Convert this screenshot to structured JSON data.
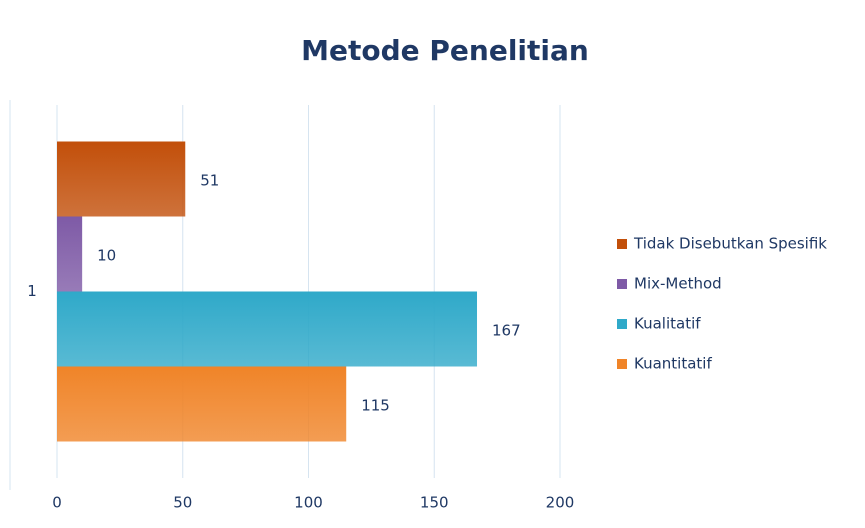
{
  "chart_data": {
    "type": "bar",
    "orientation": "horizontal",
    "title": "Metode Penelitian",
    "categories": [
      "1"
    ],
    "series": [
      {
        "name": "Tidak Disebutkan Spesifik",
        "color": "#c24f0a",
        "values": [
          51
        ]
      },
      {
        "name": "Mix-Method",
        "color": "#7e5aa6",
        "values": [
          10
        ]
      },
      {
        "name": "Kualitatif",
        "color": "#2fa9c9",
        "values": [
          167
        ]
      },
      {
        "name": "Kuantitatif",
        "color": "#f08428",
        "values": [
          115
        ]
      }
    ],
    "xlim": [
      0,
      200
    ],
    "xticks": [
      0,
      50,
      100,
      150,
      200
    ],
    "grid": true,
    "legend": "right"
  }
}
